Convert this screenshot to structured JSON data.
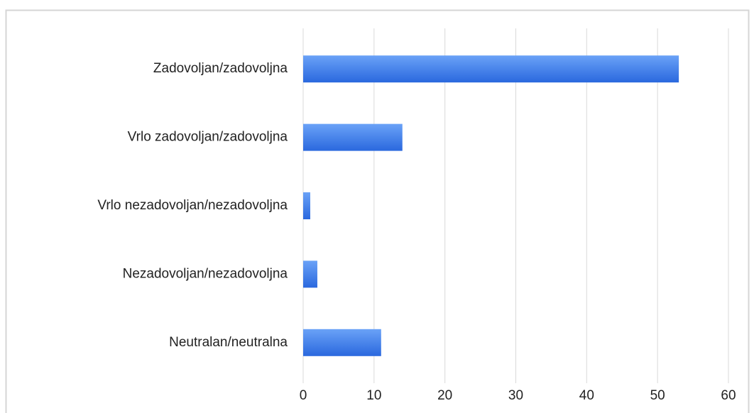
{
  "chart_data": {
    "type": "bar",
    "orientation": "horizontal",
    "categories": [
      "Zadovoljan/zadovoljna",
      "Vrlo zadovoljan/zadovoljna",
      "Vrlo nezadovoljan/nezadovoljna",
      "Nezadovoljan/nezadovoljna",
      "Neutralan/neutralna"
    ],
    "values": [
      53,
      14,
      1,
      2,
      11
    ],
    "color": "#3b7ded",
    "xlim": [
      0,
      60
    ],
    "xticks": [
      0,
      10,
      20,
      30,
      40,
      50,
      60
    ],
    "grid": true
  }
}
